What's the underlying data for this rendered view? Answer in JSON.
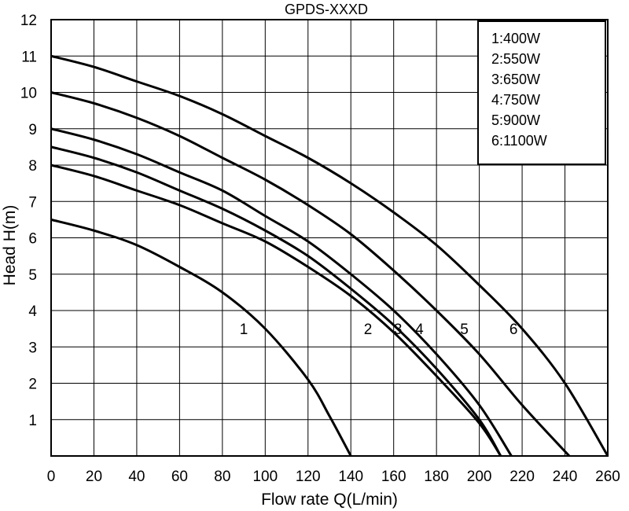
{
  "chart_data": {
    "type": "line",
    "title": "GPDS-XXXD",
    "xlabel": "Flow rate Q(L/min)",
    "ylabel": "Head H(m)",
    "xlim": [
      0,
      260
    ],
    "ylim": [
      0,
      12
    ],
    "xticks": [
      0,
      20,
      40,
      60,
      80,
      100,
      120,
      140,
      160,
      180,
      200,
      220,
      240,
      260
    ],
    "yticks": [
      1,
      2,
      3,
      4,
      5,
      6,
      7,
      8,
      9,
      10,
      11,
      12
    ],
    "grid": true,
    "legend_position": "top-right",
    "legend": [
      "1:400W",
      "2:550W",
      "3:650W",
      "4:750W",
      "5:900W",
      "6:1100W"
    ],
    "series": [
      {
        "name": "1",
        "points": [
          [
            0,
            6.5
          ],
          [
            20,
            6.2
          ],
          [
            40,
            5.8
          ],
          [
            60,
            5.2
          ],
          [
            80,
            4.5
          ],
          [
            100,
            3.5
          ],
          [
            120,
            2.1
          ],
          [
            130,
            1.1
          ],
          [
            140,
            0
          ]
        ],
        "label_at": [
          90,
          3.5
        ]
      },
      {
        "name": "2",
        "points": [
          [
            0,
            8.0
          ],
          [
            20,
            7.7
          ],
          [
            40,
            7.3
          ],
          [
            60,
            6.9
          ],
          [
            80,
            6.4
          ],
          [
            100,
            5.9
          ],
          [
            120,
            5.2
          ],
          [
            140,
            4.4
          ],
          [
            160,
            3.4
          ],
          [
            180,
            2.2
          ],
          [
            200,
            0.9
          ],
          [
            210,
            0
          ]
        ],
        "label_at": [
          148,
          3.5
        ]
      },
      {
        "name": "3",
        "points": [
          [
            0,
            8.5
          ],
          [
            20,
            8.2
          ],
          [
            40,
            7.8
          ],
          [
            60,
            7.3
          ],
          [
            80,
            6.8
          ],
          [
            100,
            6.2
          ],
          [
            120,
            5.5
          ],
          [
            140,
            4.6
          ],
          [
            160,
            3.6
          ],
          [
            180,
            2.4
          ],
          [
            200,
            1.0
          ],
          [
            210,
            0
          ]
        ],
        "label_at": [
          162,
          3.5
        ]
      },
      {
        "name": "4",
        "points": [
          [
            0,
            9.0
          ],
          [
            20,
            8.7
          ],
          [
            40,
            8.3
          ],
          [
            60,
            7.8
          ],
          [
            80,
            7.3
          ],
          [
            100,
            6.6
          ],
          [
            120,
            5.9
          ],
          [
            140,
            5.0
          ],
          [
            160,
            4.0
          ],
          [
            180,
            2.8
          ],
          [
            200,
            1.4
          ],
          [
            215,
            0
          ]
        ],
        "label_at": [
          172,
          3.5
        ]
      },
      {
        "name": "5",
        "points": [
          [
            0,
            10.0
          ],
          [
            20,
            9.7
          ],
          [
            40,
            9.3
          ],
          [
            60,
            8.8
          ],
          [
            80,
            8.2
          ],
          [
            100,
            7.6
          ],
          [
            120,
            6.9
          ],
          [
            140,
            6.1
          ],
          [
            160,
            5.1
          ],
          [
            180,
            4.0
          ],
          [
            200,
            2.8
          ],
          [
            220,
            1.4
          ],
          [
            242,
            0
          ]
        ],
        "label_at": [
          193,
          3.5
        ]
      },
      {
        "name": "6",
        "points": [
          [
            0,
            11.0
          ],
          [
            20,
            10.7
          ],
          [
            40,
            10.3
          ],
          [
            60,
            9.9
          ],
          [
            80,
            9.4
          ],
          [
            100,
            8.8
          ],
          [
            120,
            8.2
          ],
          [
            140,
            7.5
          ],
          [
            160,
            6.7
          ],
          [
            180,
            5.8
          ],
          [
            200,
            4.7
          ],
          [
            220,
            3.5
          ],
          [
            240,
            2.0
          ],
          [
            260,
            0
          ]
        ],
        "label_at": [
          216,
          3.5
        ]
      }
    ]
  }
}
